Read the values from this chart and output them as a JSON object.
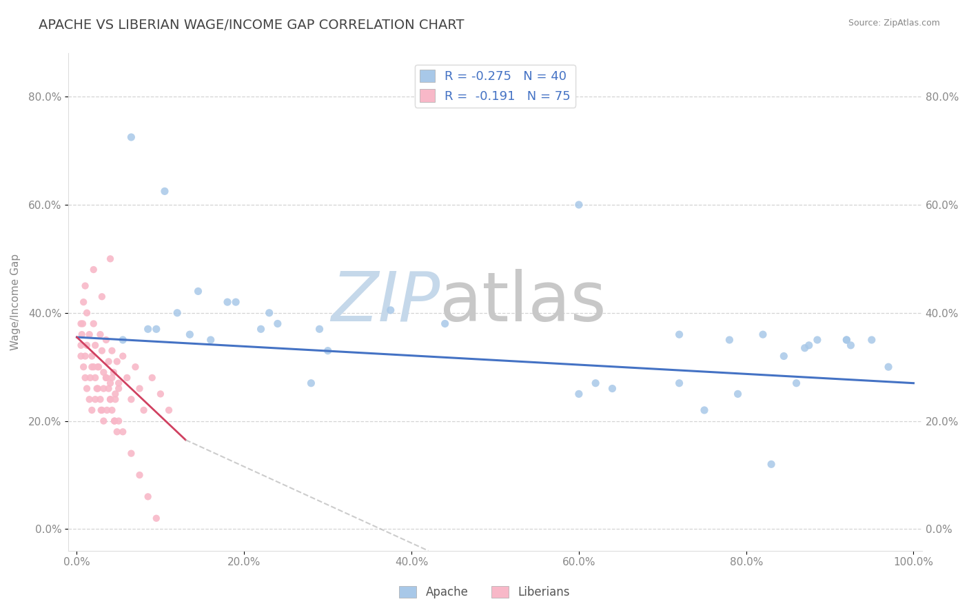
{
  "title": "APACHE VS LIBERIAN WAGE/INCOME GAP CORRELATION CHART",
  "source": "Source: ZipAtlas.com",
  "ylabel": "Wage/Income Gap",
  "xlim": [
    -0.01,
    1.01
  ],
  "ylim": [
    -0.04,
    0.88
  ],
  "xtick_vals": [
    0.0,
    0.2,
    0.4,
    0.6,
    0.8,
    1.0
  ],
  "xtick_labels": [
    "0.0%",
    "20.0%",
    "40.0%",
    "60.0%",
    "80.0%",
    "100.0%"
  ],
  "ytick_vals": [
    0.0,
    0.2,
    0.4,
    0.6,
    0.8
  ],
  "ytick_labels": [
    "0.0%",
    "20.0%",
    "40.0%",
    "60.0%",
    "80.0%"
  ],
  "apache_color": "#a8c8e8",
  "liberian_color": "#f8b8c8",
  "apache_R": -0.275,
  "apache_N": 40,
  "liberian_R": -0.191,
  "liberian_N": 75,
  "trend_color_apache": "#4472c4",
  "trend_color_liberian": "#d04060",
  "trend_color_liberian_dash": "#c0c0c0",
  "watermark_zip": "ZIP",
  "watermark_atlas": "atlas",
  "watermark_color_zip": "#c5d8ea",
  "watermark_color_atlas": "#c8c8c8",
  "background_color": "#ffffff",
  "grid_color": "#d0d0d0",
  "title_color": "#444444",
  "source_color": "#888888",
  "tick_color": "#888888",
  "legend_label_apache": "Apache",
  "legend_label_liberian": "Liberians",
  "apache_x": [
    0.065,
    0.105,
    0.145,
    0.19,
    0.24,
    0.3,
    0.375,
    0.44,
    0.6,
    0.62,
    0.64,
    0.72,
    0.78,
    0.82,
    0.845,
    0.87,
    0.875,
    0.885,
    0.92,
    0.925,
    0.95,
    0.97,
    0.085,
    0.12,
    0.16,
    0.22,
    0.28,
    0.72,
    0.79,
    0.86,
    0.92,
    0.055,
    0.095,
    0.135,
    0.18,
    0.23,
    0.29,
    0.6,
    0.75,
    0.83
  ],
  "apache_y": [
    0.725,
    0.625,
    0.44,
    0.42,
    0.38,
    0.33,
    0.405,
    0.38,
    0.6,
    0.27,
    0.26,
    0.36,
    0.35,
    0.36,
    0.32,
    0.335,
    0.34,
    0.35,
    0.35,
    0.34,
    0.35,
    0.3,
    0.37,
    0.4,
    0.35,
    0.37,
    0.27,
    0.27,
    0.25,
    0.27,
    0.35,
    0.35,
    0.37,
    0.36,
    0.42,
    0.4,
    0.37,
    0.25,
    0.22,
    0.12
  ],
  "liberian_x": [
    0.005,
    0.008,
    0.01,
    0.012,
    0.015,
    0.018,
    0.02,
    0.022,
    0.025,
    0.028,
    0.03,
    0.032,
    0.035,
    0.038,
    0.04,
    0.042,
    0.044,
    0.046,
    0.048,
    0.05,
    0.005,
    0.01,
    0.015,
    0.02,
    0.025,
    0.03,
    0.035,
    0.04,
    0.045,
    0.05,
    0.005,
    0.008,
    0.012,
    0.018,
    0.022,
    0.028,
    0.032,
    0.038,
    0.042,
    0.048,
    0.006,
    0.01,
    0.016,
    0.022,
    0.026,
    0.032,
    0.036,
    0.042,
    0.046,
    0.05,
    0.007,
    0.012,
    0.018,
    0.024,
    0.029,
    0.035,
    0.04,
    0.045,
    0.055,
    0.06,
    0.065,
    0.07,
    0.075,
    0.08,
    0.09,
    0.1,
    0.11,
    0.055,
    0.065,
    0.075,
    0.085,
    0.095,
    0.02,
    0.03,
    0.04
  ],
  "liberian_y": [
    0.38,
    0.42,
    0.45,
    0.4,
    0.36,
    0.32,
    0.38,
    0.34,
    0.3,
    0.36,
    0.33,
    0.29,
    0.35,
    0.31,
    0.27,
    0.33,
    0.29,
    0.25,
    0.31,
    0.27,
    0.32,
    0.28,
    0.24,
    0.3,
    0.26,
    0.22,
    0.28,
    0.24,
    0.2,
    0.26,
    0.34,
    0.3,
    0.26,
    0.22,
    0.28,
    0.24,
    0.2,
    0.26,
    0.22,
    0.18,
    0.36,
    0.32,
    0.28,
    0.24,
    0.3,
    0.26,
    0.22,
    0.28,
    0.24,
    0.2,
    0.38,
    0.34,
    0.3,
    0.26,
    0.22,
    0.28,
    0.24,
    0.2,
    0.32,
    0.28,
    0.24,
    0.3,
    0.26,
    0.22,
    0.28,
    0.25,
    0.22,
    0.18,
    0.14,
    0.1,
    0.06,
    0.02,
    0.48,
    0.43,
    0.5
  ],
  "apache_trend_x0": 0.0,
  "apache_trend_y0": 0.355,
  "apache_trend_x1": 1.0,
  "apache_trend_y1": 0.27,
  "liberian_trend_solid_x0": 0.0,
  "liberian_trend_solid_y0": 0.355,
  "liberian_trend_solid_x1": 0.13,
  "liberian_trend_solid_y1": 0.165,
  "liberian_trend_dash_x0": 0.13,
  "liberian_trend_dash_y0": 0.165,
  "liberian_trend_dash_x1": 0.42,
  "liberian_trend_dash_y1": -0.04
}
